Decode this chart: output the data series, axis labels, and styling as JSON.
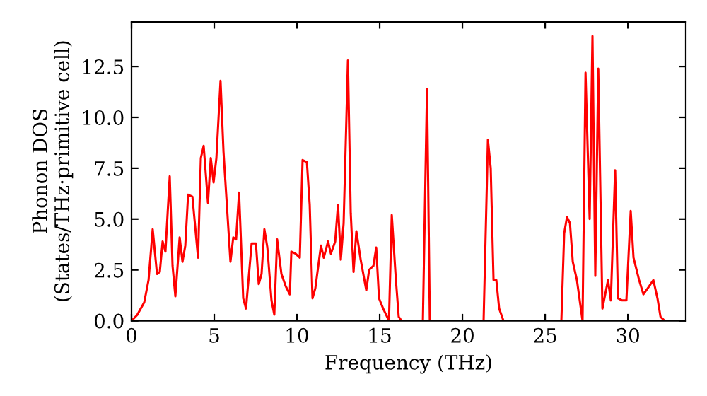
{
  "chart_data": {
    "type": "line",
    "xlabel": "Frequency (THz)",
    "ylabel": "Phonon DOS\n(States/THz·primitive cell)",
    "xlim": [
      0,
      33.5
    ],
    "ylim": [
      0,
      14.7
    ],
    "xticks": [
      0,
      5,
      10,
      15,
      20,
      25,
      30
    ],
    "yticks": [
      {
        "value": 0,
        "label": "0.0"
      },
      {
        "value": 2.5,
        "label": "2.5"
      },
      {
        "value": 5,
        "label": "5.0"
      },
      {
        "value": 7.5,
        "label": "7.5"
      },
      {
        "value": 10,
        "label": "10.0"
      },
      {
        "value": 12.5,
        "label": "12.5"
      }
    ],
    "grid": false,
    "marker": "none",
    "line_style": "solid",
    "series": [
      {
        "color": "#ff0000",
        "x": [
          0,
          0.34,
          0.77,
          1.03,
          1.28,
          1.54,
          1.71,
          1.88,
          2.05,
          2.31,
          2.48,
          2.65,
          2.91,
          3.08,
          3.25,
          3.42,
          3.68,
          4.02,
          4.19,
          4.36,
          4.62,
          4.79,
          4.96,
          5.13,
          5.38,
          5.56,
          5.98,
          6.15,
          6.32,
          6.5,
          6.75,
          6.92,
          7.26,
          7.52,
          7.69,
          7.86,
          8.03,
          8.21,
          8.46,
          8.63,
          8.8,
          9.06,
          9.32,
          9.57,
          9.66,
          9.91,
          10.17,
          10.34,
          10.6,
          10.77,
          10.94,
          11.11,
          11.45,
          11.62,
          11.88,
          12.05,
          12.31,
          12.48,
          12.65,
          12.82,
          13.08,
          13.25,
          13.42,
          13.59,
          13.85,
          14.19,
          14.36,
          14.62,
          14.79,
          14.96,
          15.21,
          15.56,
          15.73,
          15.98,
          16.15,
          16.32,
          17.61,
          17.86,
          18.03,
          21.28,
          21.54,
          21.71,
          21.88,
          22.05,
          22.22,
          22.48,
          25.98,
          26.15,
          26.32,
          26.5,
          26.67,
          26.92,
          27.26,
          27.44,
          27.69,
          27.86,
          28.03,
          28.21,
          28.46,
          28.63,
          28.8,
          28.97,
          29.23,
          29.4,
          29.66,
          29.91,
          30.17,
          30.34,
          30.68,
          30.94,
          31.2,
          31.54,
          31.79,
          31.97,
          32.22,
          33.5
        ],
        "values": [
          0,
          0.28,
          0.91,
          2.0,
          4.5,
          2.3,
          2.4,
          3.9,
          3.4,
          7.1,
          2.7,
          1.2,
          4.1,
          2.9,
          3.7,
          6.2,
          6.1,
          3.1,
          8.0,
          8.6,
          5.8,
          8.0,
          6.8,
          8.0,
          11.8,
          8.3,
          2.9,
          4.1,
          4.0,
          6.3,
          1.1,
          0.6,
          3.8,
          3.8,
          1.8,
          2.3,
          4.5,
          3.6,
          1.0,
          0.3,
          4.0,
          2.3,
          1.7,
          1.3,
          3.4,
          3.3,
          3.1,
          7.9,
          7.8,
          5.7,
          1.1,
          1.6,
          3.7,
          3.1,
          3.9,
          3.3,
          3.9,
          5.7,
          3.0,
          4.8,
          12.8,
          5.3,
          2.4,
          4.4,
          3.0,
          1.5,
          2.5,
          2.7,
          3.6,
          1.1,
          0.6,
          0,
          5.2,
          2.0,
          0.2,
          0,
          0,
          11.4,
          0,
          0,
          8.9,
          7.5,
          2.0,
          2.0,
          0.6,
          0,
          0,
          4.3,
          5.1,
          4.8,
          2.9,
          2.0,
          0,
          12.2,
          5.0,
          14.0,
          2.2,
          12.4,
          0.6,
          1.3,
          2.0,
          1.0,
          7.4,
          1.1,
          1.0,
          1.0,
          5.4,
          3.1,
          2.0,
          1.3,
          1.6,
          2.0,
          1.1,
          0.2,
          0,
          0
        ]
      }
    ]
  }
}
